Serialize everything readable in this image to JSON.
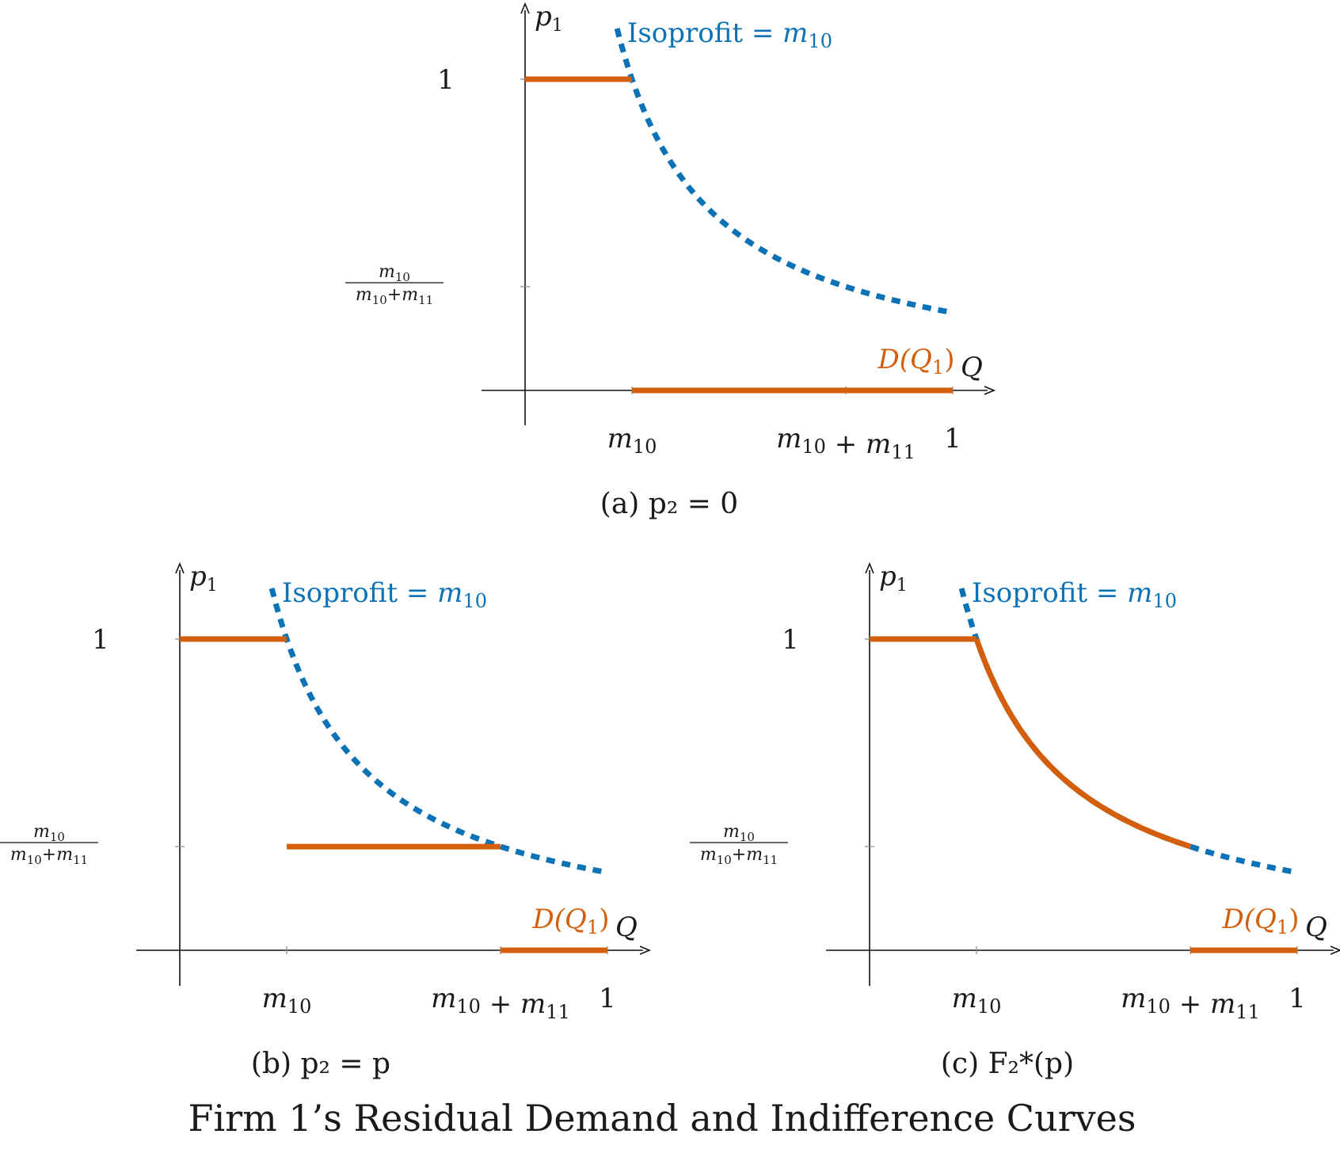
{
  "figure_title": "Firm 1’s Residual Demand and Indifference Curves",
  "colors": {
    "demand": "#d35f0d",
    "isoprofit": "#0a72b5",
    "axis": "#111111"
  },
  "labels": {
    "y_axis": "p",
    "y_axis_sub": "1",
    "x_axis": "Q",
    "tick_one": "1",
    "m": "m",
    "sub10": "10",
    "sub11": "11",
    "plus": "+",
    "iso_text": "Isoprofit = ",
    "D_text": "D(Q",
    "D_sub": "1",
    "D_close": ")"
  },
  "chart_data": [
    {
      "type": "line",
      "caption": "(a) p₂ = 0",
      "xlabel": "Q",
      "ylabel": "p₁",
      "x_ticks": [
        "m₁₀",
        "m₁₀ + m₁₁",
        "1"
      ],
      "y_ticks": [
        "m₁₀/(m₁₀+m₁₁)",
        "1"
      ],
      "params": {
        "m10": 0.25,
        "m11": 0.5
      },
      "xlim": [
        0,
        1
      ],
      "ylim": [
        0,
        1
      ],
      "series": [
        {
          "name": "Isoprofit = m₁₀",
          "style": "dashed",
          "function": "p = m10 / Q",
          "x_range": [
            0.215,
            1
          ]
        },
        {
          "name": "D(Q₁)",
          "style": "solid",
          "segments": [
            [
              [
                0,
                1
              ],
              [
                0.25,
                1
              ]
            ],
            [
              [
                0.25,
                0
              ],
              [
                1,
                0
              ]
            ]
          ]
        }
      ]
    },
    {
      "type": "line",
      "caption": "(b) p₂ = p",
      "xlabel": "Q",
      "ylabel": "p₁",
      "x_ticks": [
        "m₁₀",
        "m₁₀ + m₁₁",
        "1"
      ],
      "y_ticks": [
        "m₁₀/(m₁₀+m₁₁)",
        "1"
      ],
      "params": {
        "m10": 0.25,
        "m11": 0.5
      },
      "xlim": [
        0,
        1
      ],
      "ylim": [
        0,
        1
      ],
      "series": [
        {
          "name": "Isoprofit = m₁₀",
          "style": "dashed",
          "function": "p = m10 / Q",
          "x_range": [
            0.215,
            1
          ]
        },
        {
          "name": "D(Q₁)",
          "style": "solid",
          "segments": [
            [
              [
                0,
                1
              ],
              [
                0.25,
                1
              ]
            ],
            [
              [
                0.25,
                0.333
              ],
              [
                0.75,
                0.333
              ]
            ],
            [
              [
                0.75,
                0
              ],
              [
                1,
                0
              ]
            ]
          ]
        }
      ]
    },
    {
      "type": "line",
      "caption": "(c) F₂*(p)",
      "xlabel": "Q",
      "ylabel": "p₁",
      "x_ticks": [
        "m₁₀",
        "m₁₀ + m₁₁",
        "1"
      ],
      "y_ticks": [
        "m₁₀/(m₁₀+m₁₁)",
        "1"
      ],
      "params": {
        "m10": 0.25,
        "m11": 0.5
      },
      "xlim": [
        0,
        1
      ],
      "ylim": [
        0,
        1
      ],
      "series": [
        {
          "name": "Isoprofit = m₁₀",
          "style": "dashed",
          "function": "p = m10 / Q",
          "x_range": [
            0.215,
            1
          ]
        },
        {
          "name": "D(Q₁)",
          "style": "solid",
          "segments": [
            [
              [
                0,
                1
              ],
              [
                0.25,
                1
              ]
            ],
            [
              [
                0.75,
                0
              ],
              [
                1,
                0
              ]
            ]
          ],
          "curve_segment": {
            "function": "p = m10 / Q",
            "x_range": [
              0.25,
              0.75
            ]
          }
        }
      ]
    }
  ]
}
